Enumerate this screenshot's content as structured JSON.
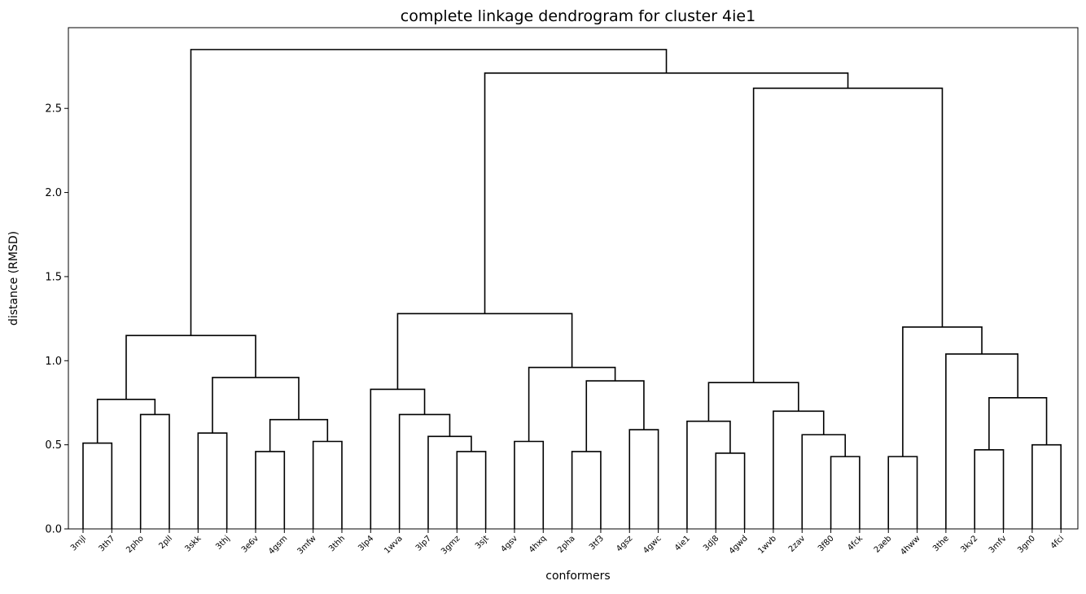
{
  "chart_data": {
    "type": "dendrogram",
    "title": "complete linkage dendrogram for cluster 4ie1",
    "xlabel": "conformers",
    "ylabel": "distance (RMSD)",
    "ylim": [
      0,
      2.98
    ],
    "yticks": [
      "0.0",
      "0.5",
      "1.0",
      "1.5",
      "2.0",
      "2.5"
    ],
    "leaves": [
      "3mjl",
      "3th7",
      "2pho",
      "2pll",
      "3skk",
      "3thj",
      "3e6v",
      "4gsm",
      "3mfw",
      "3thh",
      "3lp4",
      "1wva",
      "3lp7",
      "3gmz",
      "3sjt",
      "4gsv",
      "4hxq",
      "2pha",
      "3tf3",
      "4gsz",
      "4gwc",
      "4ie1",
      "3dj8",
      "4gwd",
      "1wvb",
      "2zav",
      "3f80",
      "4fck",
      "2aeb",
      "4hww",
      "3the",
      "3kv2",
      "3mfv",
      "3gn0",
      "4fci"
    ],
    "merges": [
      {
        "a": "3mjl",
        "b": "3th7",
        "height": 0.51
      },
      {
        "a": "2pho",
        "b": "2pll",
        "height": 0.68
      },
      {
        "a": "3mjl+3th7",
        "b": "2pho+2pll",
        "height": 0.77
      },
      {
        "a": "3skk",
        "b": "3thj",
        "height": 0.57
      },
      {
        "a": "3e6v",
        "b": "4gsm",
        "height": 0.46
      },
      {
        "a": "3mfw",
        "b": "3thh",
        "height": 0.52
      },
      {
        "a": "3e6v+4gsm",
        "b": "3mfw+3thh",
        "height": 0.65
      },
      {
        "a": "3skk+3thj",
        "b": "3e6v..3thh",
        "height": 0.9
      },
      {
        "a": "3mjl..2pll",
        "b": "3skk..3thh",
        "height": 1.15
      },
      {
        "a": "3gmz",
        "b": "3sjt",
        "height": 0.46
      },
      {
        "a": "3lp7",
        "b": "3gmz+3sjt",
        "height": 0.55
      },
      {
        "a": "1wva",
        "b": "3lp7..3sjt",
        "height": 0.68
      },
      {
        "a": "3lp4",
        "b": "1wva..3sjt",
        "height": 0.83
      },
      {
        "a": "4gsv",
        "b": "4hxq",
        "height": 0.52
      },
      {
        "a": "2pha",
        "b": "3tf3",
        "height": 0.46
      },
      {
        "a": "4gsz",
        "b": "4gwc",
        "height": 0.59
      },
      {
        "a": "2pha+3tf3",
        "b": "4gsz+4gwc",
        "height": 0.88
      },
      {
        "a": "4gsv+4hxq",
        "b": "2pha..4gwc",
        "height": 0.96
      },
      {
        "a": "3lp4..3sjt",
        "b": "4gsv..4gwc",
        "height": 1.28
      },
      {
        "a": "3dj8",
        "b": "4gwd",
        "height": 0.45
      },
      {
        "a": "4ie1",
        "b": "3dj8+4gwd",
        "height": 0.64
      },
      {
        "a": "3f80",
        "b": "4fck",
        "height": 0.43
      },
      {
        "a": "2zav",
        "b": "3f80+4fck",
        "height": 0.56
      },
      {
        "a": "1wvb",
        "b": "2zav..4fck",
        "height": 0.7
      },
      {
        "a": "4ie1..4gwd",
        "b": "1wvb..4fck",
        "height": 0.87
      },
      {
        "a": "2aeb",
        "b": "4hww",
        "height": 0.43
      },
      {
        "a": "3kv2",
        "b": "3mfv",
        "height": 0.47
      },
      {
        "a": "3gn0",
        "b": "4fci",
        "height": 0.5
      },
      {
        "a": "3kv2+3mfv",
        "b": "3gn0+4fci",
        "height": 0.78
      },
      {
        "a": "3the",
        "b": "3kv2..4fci",
        "height": 1.04
      },
      {
        "a": "2aeb+4hww",
        "b": "3the..4fci",
        "height": 1.2
      },
      {
        "a": "4ie1..4fck",
        "b": "2aeb..4fci",
        "height": 2.62
      },
      {
        "a": "3lp4..4gwc",
        "b": "4ie1..4fci",
        "height": 2.71
      },
      {
        "a": "3mjl..3thh",
        "b": "3lp4..4fci",
        "height": 2.85
      }
    ],
    "line_color": "#000000",
    "grid": false
  }
}
